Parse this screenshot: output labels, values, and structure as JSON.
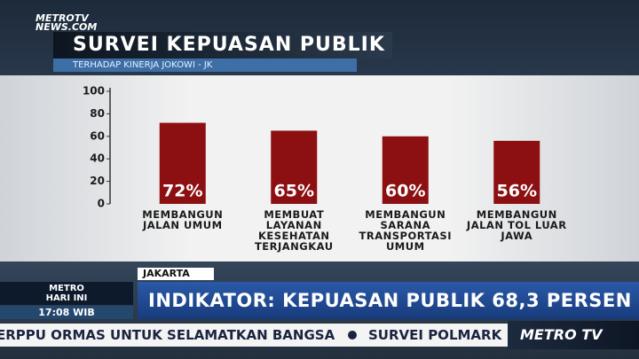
{
  "chart_data": {
    "type": "bar",
    "title": "SURVEI KEPUASAN PUBLIK",
    "subtitle": "TERHADAP KINERJA JOKOWI - JK",
    "categories": [
      "MEMBANGUN\nJALAN UMUM",
      "MEMBUAT\nLAYANAN\nKESEHATAN\nTERJANGKAU",
      "MEMBANGUN\nSARANA\nTRANSPORTASI\nUMUM",
      "MEMBANGUN\nJALAN TOL LUAR\nJAWA"
    ],
    "values": [
      72,
      65,
      60,
      56
    ],
    "value_labels": [
      "72%",
      "65%",
      "60%",
      "56%"
    ],
    "color": "#8c0f12",
    "ylim": [
      0,
      100
    ],
    "yticks": [
      0,
      20,
      40,
      60,
      80,
      100
    ]
  },
  "logo": "METROTV\nNEWS.COM",
  "location": "JAKARTA",
  "headline": "INDIKATOR: KEPUASAN PUBLIK 68,3 PERSEN",
  "program": "METRO\nHARI INI",
  "time": "17:08 WIB",
  "ticker": [
    "ERPPU ORMAS UNTUK SELAMATKAN BANGSA",
    "SURVEI POLMARK"
  ],
  "channel_logo": "METRO TV"
}
